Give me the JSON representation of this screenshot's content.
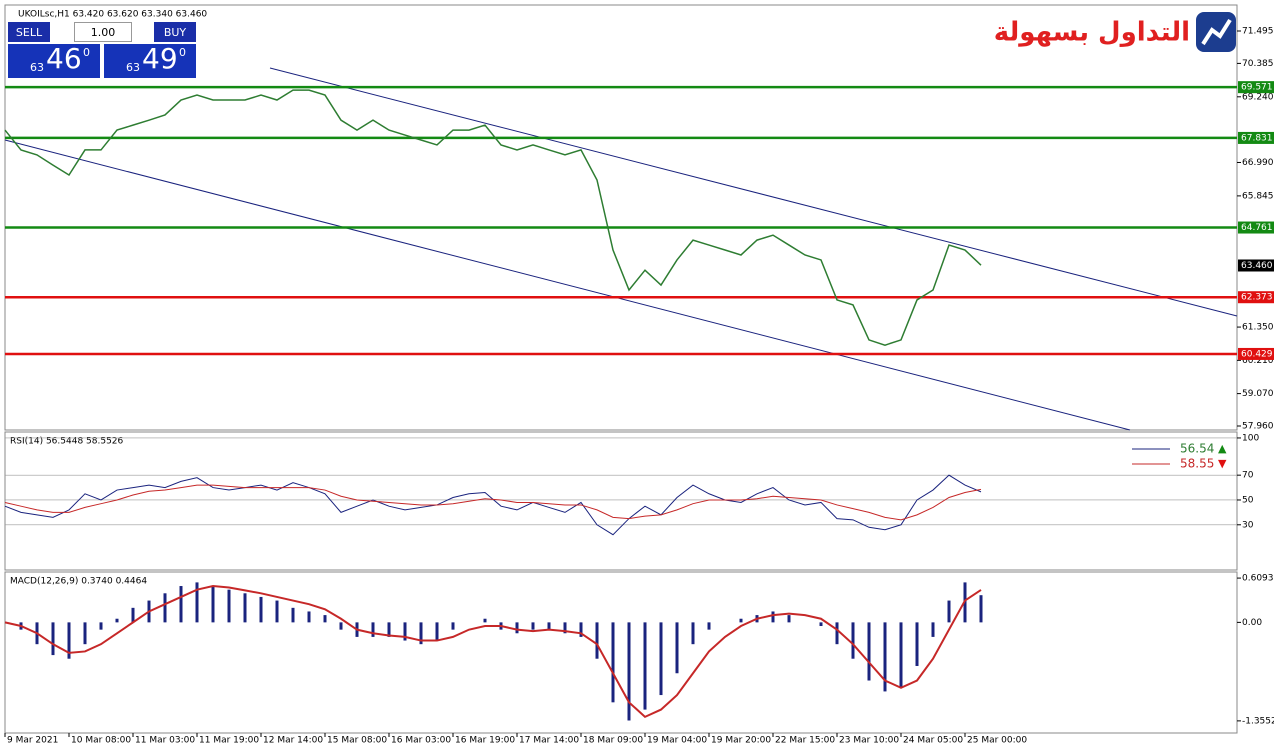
{
  "trade_panel": {
    "sell": "SELL",
    "lot": "1.00",
    "buy": "BUY",
    "sell_big": "63",
    "sell_price": "46",
    "sell_sup": "0",
    "buy_big": "63",
    "buy_price": "49",
    "buy_sup": "0"
  },
  "logo": {
    "text": "التداول بسهولة"
  },
  "chart_data": [
    {
      "type": "line",
      "title": "UKOILsc,H1 63.420 63.620 63.340 63.460",
      "color": "#2e7d32",
      "categories": [
        "9 Mar 2021",
        null,
        null,
        null,
        "10 Mar 08:00",
        null,
        null,
        null,
        "11 Mar 03:00",
        null,
        null,
        null,
        "11 Mar 19:00",
        null,
        null,
        null,
        "12 Mar 14:00",
        null,
        null,
        null,
        "15 Mar 08:00",
        null,
        null,
        null,
        "16 Mar 03:00",
        null,
        null,
        null,
        "16 Mar 19:00",
        null,
        null,
        null,
        "17 Mar 14:00",
        null,
        null,
        null,
        "18 Mar 09:00",
        null,
        null,
        null,
        "19 Mar 04:00",
        null,
        null,
        null,
        "19 Mar 20:00",
        null,
        null,
        null,
        "22 Mar 15:00",
        null,
        null,
        null,
        "23 Mar 10:00",
        null,
        null,
        null,
        "24 Mar 05:00",
        null,
        null,
        null,
        "25 Mar 00:00",
        null
      ],
      "values": [
        68.1,
        67.42,
        67.25,
        66.9,
        66.56,
        67.42,
        67.42,
        68.1,
        68.27,
        68.44,
        68.62,
        69.13,
        69.3,
        69.13,
        69.13,
        69.13,
        69.3,
        69.13,
        69.47,
        69.47,
        69.3,
        68.44,
        68.1,
        68.44,
        68.1,
        67.93,
        67.76,
        67.59,
        68.1,
        68.1,
        68.27,
        67.59,
        67.42,
        67.59,
        67.42,
        67.25,
        67.42,
        66.39,
        63.99,
        62.62,
        63.3,
        62.79,
        63.65,
        64.33,
        64.16,
        63.99,
        63.82,
        64.33,
        64.5,
        64.16,
        63.82,
        63.65,
        62.28,
        62.11,
        60.91,
        60.73,
        60.91,
        62.28,
        62.62,
        64.16,
        63.99,
        63.47
      ],
      "ylim": [
        57.823,
        72.386
      ],
      "yticks": [
        71.495,
        70.385,
        {
          "value": 69.24,
          "label": "69.240"
        },
        {
          "value": 66.99,
          "label": "66.990"
        },
        65.845,
        {
          "value": 61.35,
          "label": "61.350"
        },
        {
          "value": 60.21,
          "label": "60.210"
        },
        {
          "value": 59.07,
          "label": "59.070"
        },
        {
          "value": 57.96,
          "label": "57.960"
        }
      ],
      "levels": [
        {
          "value": 69.571,
          "color": "#138a13"
        },
        {
          "value": 67.831,
          "color": "#138a13"
        },
        {
          "value": 64.761,
          "color": "#138a13"
        },
        {
          "value": 62.373,
          "color": "#e01010"
        },
        {
          "value": 60.429,
          "color": "#e01010"
        }
      ],
      "current": {
        "value": 63.46,
        "label": "63.460"
      }
    },
    {
      "type": "line",
      "title": "RSI(14) 56.5448 58.5526",
      "ylim": [
        -6.45,
        104.8
      ],
      "yticks": [
        30,
        50,
        70,
        100
      ],
      "grid": true,
      "series": [
        {
          "name": "56.54",
          "color": "#1a237e",
          "values": [
            45,
            40,
            38,
            36,
            42,
            55,
            50,
            58,
            60,
            62,
            60,
            65,
            68,
            60,
            58,
            60,
            62,
            58,
            64,
            60,
            55,
            40,
            45,
            50,
            45,
            42,
            44,
            46,
            52,
            55,
            56,
            45,
            42,
            48,
            44,
            40,
            48,
            30,
            22,
            35,
            45,
            38,
            52,
            62,
            55,
            50,
            48,
            55,
            60,
            50,
            46,
            48,
            35,
            34,
            28,
            26,
            30,
            50,
            58,
            70,
            62,
            56.54
          ]
        },
        {
          "name": "58.55",
          "color": "#c62828",
          "values": [
            48,
            45,
            42,
            40,
            40,
            44,
            47,
            50,
            54,
            57,
            58,
            60,
            62,
            62,
            61,
            60,
            60,
            60,
            60,
            60,
            58,
            53,
            50,
            49,
            48,
            47,
            46,
            46,
            47,
            49,
            51,
            50,
            48,
            48,
            47,
            46,
            46,
            42,
            36,
            35,
            37,
            38,
            42,
            47,
            50,
            50,
            50,
            51,
            53,
            52,
            51,
            50,
            46,
            43,
            40,
            36,
            34,
            38,
            44,
            52,
            56,
            58.55
          ]
        }
      ]
    },
    {
      "type": "macd",
      "title": "MACD(12,26,9) 0.3740 0.4464",
      "ylim": [
        -1.522,
        0.693
      ],
      "yticks": [
        0.6093,
        {
          "value": 0,
          "label": "0.00"
        },
        -1.3552
      ],
      "series": [
        {
          "style": "bar",
          "color": "#1a237e",
          "values": [
            0,
            -0.1,
            -0.3,
            -0.45,
            -0.5,
            -0.3,
            -0.1,
            0.05,
            0.2,
            0.3,
            0.4,
            0.5,
            0.55,
            0.5,
            0.45,
            0.4,
            0.35,
            0.3,
            0.2,
            0.15,
            0.1,
            -0.1,
            -0.2,
            -0.2,
            -0.2,
            -0.25,
            -0.3,
            -0.25,
            -0.1,
            0,
            0.05,
            -0.1,
            -0.15,
            -0.1,
            -0.1,
            -0.15,
            -0.2,
            -0.5,
            -1.1,
            -1.35,
            -1.2,
            -1.0,
            -0.7,
            -0.3,
            -0.1,
            0,
            0.05,
            0.1,
            0.15,
            0.1,
            0,
            -0.05,
            -0.3,
            -0.5,
            -0.8,
            -0.95,
            -0.9,
            -0.6,
            -0.2,
            0.3,
            0.55,
            0.374
          ]
        },
        {
          "style": "line",
          "color": "#c62828",
          "values": [
            0,
            -0.05,
            -0.15,
            -0.3,
            -0.42,
            -0.4,
            -0.3,
            -0.15,
            0,
            0.15,
            0.25,
            0.35,
            0.45,
            0.5,
            0.48,
            0.44,
            0.4,
            0.35,
            0.3,
            0.25,
            0.18,
            0.05,
            -0.1,
            -0.15,
            -0.18,
            -0.2,
            -0.25,
            -0.25,
            -0.2,
            -0.1,
            -0.05,
            -0.05,
            -0.1,
            -0.12,
            -0.1,
            -0.12,
            -0.15,
            -0.3,
            -0.7,
            -1.1,
            -1.3,
            -1.2,
            -1.0,
            -0.7,
            -0.4,
            -0.2,
            -0.05,
            0.05,
            0.1,
            0.12,
            0.1,
            0.05,
            -0.1,
            -0.3,
            -0.55,
            -0.8,
            -0.9,
            -0.8,
            -0.5,
            -0.1,
            0.3,
            0.4464
          ]
        }
      ]
    }
  ]
}
